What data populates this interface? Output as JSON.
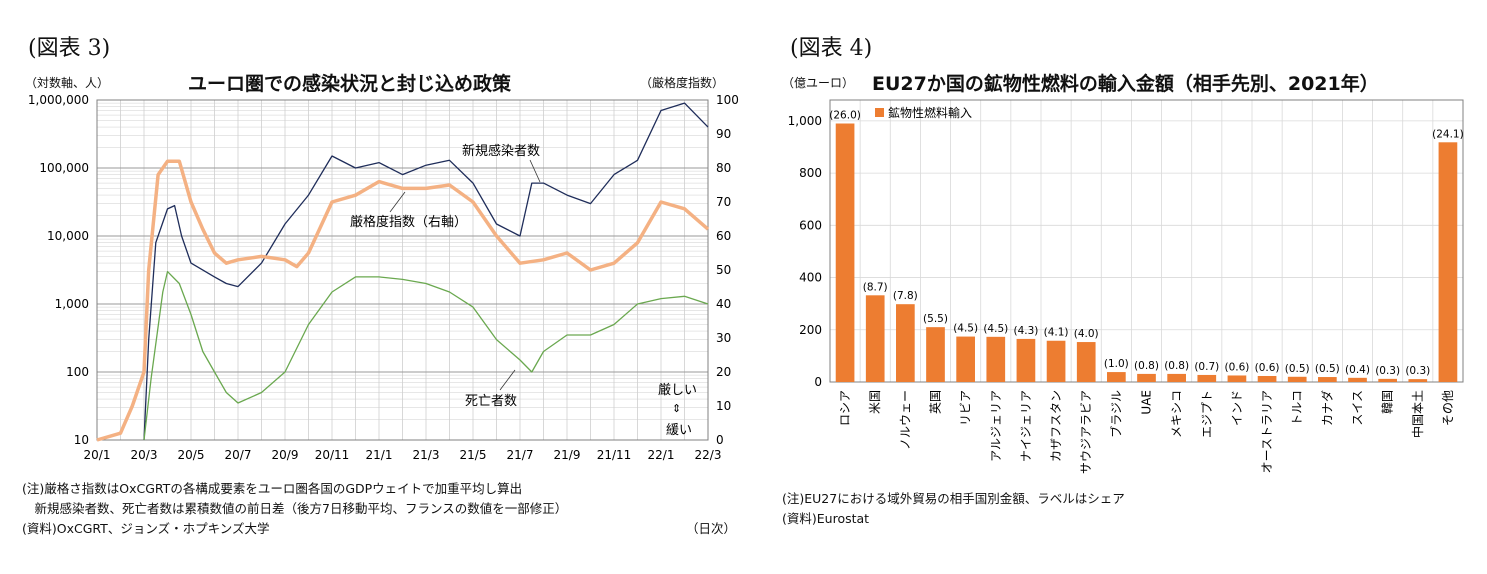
{
  "left": {
    "fig_label": "(図表 3)",
    "title": "ユーロ圏での感染状況と封じ込め政策",
    "left_unit": "（対数軸、人）",
    "right_unit": "（厳格度指数）",
    "notes": [
      "(注)厳格さ指数はOxCGRTの各構成要素をユーロ圏各国のGDPウェイトで加重平均し算出",
      "　新規感染者数、死亡者数は累積数値の前日差（後方7日移動平均、フランスの数値を一部修正）",
      "(資料)OxCGRT、ジョンズ・ホプキンズ大学"
    ],
    "x_unit": "（日次）"
  },
  "right": {
    "fig_label": "(図表 4)",
    "title": "EU27か国の鉱物性燃料の輸入金額（相手先別、2021年）",
    "unit": "（億ユーロ）",
    "notes": [
      "(注)EU27における域外貿易の相手国別金額、ラベルはシェア",
      "(資料)Eurostat"
    ]
  },
  "chart_data": [
    {
      "type": "line",
      "title": "ユーロ圏での感染状況と封じ込め政策",
      "x_ticks": [
        "20/1",
        "20/3",
        "20/5",
        "20/7",
        "20/9",
        "20/11",
        "21/1",
        "21/3",
        "21/5",
        "21/7",
        "21/9",
        "21/11",
        "22/1",
        "22/3"
      ],
      "y_left": {
        "scale": "log",
        "ticks": [
          "10",
          "100",
          "1,000",
          "10,000",
          "100,000",
          "1,000,000"
        ],
        "range": [
          10,
          1000000
        ]
      },
      "y_right": {
        "ticks": [
          "0",
          "10",
          "20",
          "30",
          "40",
          "50",
          "60",
          "70",
          "80",
          "90",
          "100"
        ],
        "range": [
          0,
          100
        ]
      },
      "grid": true,
      "series": [
        {
          "name": "新規感染者数",
          "axis": "left",
          "color": "#1f2d5a",
          "points": [
            [
              "20/3",
              10
            ],
            [
              "20/3.2",
              300
            ],
            [
              "20/3.5",
              8000
            ],
            [
              "20/4",
              25000
            ],
            [
              "20/4.3",
              28000
            ],
            [
              "20/4.6",
              10000
            ],
            [
              "20/5",
              4000
            ],
            [
              "20/6",
              2500
            ],
            [
              "20/6.5",
              2000
            ],
            [
              "20/7",
              1800
            ],
            [
              "20/8",
              4000
            ],
            [
              "20/9",
              15000
            ],
            [
              "20/10",
              40000
            ],
            [
              "20/11",
              150000
            ],
            [
              "20/12",
              100000
            ],
            [
              "21/1",
              120000
            ],
            [
              "21/2",
              80000
            ],
            [
              "21/3",
              110000
            ],
            [
              "21/4",
              130000
            ],
            [
              "21/5",
              60000
            ],
            [
              "21/6",
              15000
            ],
            [
              "21/7",
              10000
            ],
            [
              "21/7.5",
              60000
            ],
            [
              "21/8",
              60000
            ],
            [
              "21/9",
              40000
            ],
            [
              "21/10",
              30000
            ],
            [
              "21/11",
              80000
            ],
            [
              "21/12",
              130000
            ],
            [
              "22/1",
              700000
            ],
            [
              "22/2",
              900000
            ],
            [
              "22/3",
              400000
            ]
          ]
        },
        {
          "name": "死亡者数",
          "axis": "left",
          "color": "#6aa84f",
          "points": [
            [
              "20/3",
              10
            ],
            [
              "20/3.3",
              80
            ],
            [
              "20/3.8",
              1500
            ],
            [
              "20/4",
              3000
            ],
            [
              "20/4.5",
              2000
            ],
            [
              "20/5",
              700
            ],
            [
              "20/5.5",
              200
            ],
            [
              "20/6",
              100
            ],
            [
              "20/6.5",
              50
            ],
            [
              "20/7",
              35
            ],
            [
              "20/8",
              50
            ],
            [
              "20/9",
              100
            ],
            [
              "20/10",
              500
            ],
            [
              "20/11",
              1500
            ],
            [
              "20/12",
              2500
            ],
            [
              "21/1",
              2500
            ],
            [
              "21/2",
              2300
            ],
            [
              "21/3",
              2000
            ],
            [
              "21/4",
              1500
            ],
            [
              "21/5",
              900
            ],
            [
              "21/6",
              300
            ],
            [
              "21/7",
              150
            ],
            [
              "21/7.5",
              100
            ],
            [
              "21/8",
              200
            ],
            [
              "21/9",
              350
            ],
            [
              "21/10",
              350
            ],
            [
              "21/11",
              500
            ],
            [
              "21/12",
              1000
            ],
            [
              "22/1",
              1200
            ],
            [
              "22/2",
              1300
            ],
            [
              "22/3",
              1000
            ]
          ]
        },
        {
          "name": "厳格度指数（右軸）",
          "axis": "right",
          "color": "#f4b183",
          "points": [
            [
              "20/1",
              0
            ],
            [
              "20/2",
              2
            ],
            [
              "20/2.5",
              10
            ],
            [
              "20/3",
              20
            ],
            [
              "20/3.2",
              50
            ],
            [
              "20/3.6",
              78
            ],
            [
              "20/4",
              82
            ],
            [
              "20/4.5",
              82
            ],
            [
              "20/5",
              70
            ],
            [
              "20/5.5",
              62
            ],
            [
              "20/6",
              55
            ],
            [
              "20/6.5",
              52
            ],
            [
              "20/7",
              53
            ],
            [
              "20/8",
              54
            ],
            [
              "20/9",
              53
            ],
            [
              "20/9.5",
              51
            ],
            [
              "20/10",
              55
            ],
            [
              "20/11",
              70
            ],
            [
              "20/12",
              72
            ],
            [
              "21/1",
              76
            ],
            [
              "21/2",
              74
            ],
            [
              "21/3",
              74
            ],
            [
              "21/4",
              75
            ],
            [
              "21/5",
              70
            ],
            [
              "21/6",
              60
            ],
            [
              "21/7",
              52
            ],
            [
              "21/8",
              53
            ],
            [
              "21/9",
              55
            ],
            [
              "21/10",
              50
            ],
            [
              "21/11",
              52
            ],
            [
              "21/12",
              58
            ],
            [
              "22/1",
              70
            ],
            [
              "22/2",
              68
            ],
            [
              "22/3",
              62
            ]
          ]
        }
      ],
      "annotations": [
        "新規感染者数",
        "厳格度指数（右軸）",
        "死亡者数",
        "厳しい",
        "緩い"
      ]
    },
    {
      "type": "bar",
      "title": "EU27か国の鉱物性燃料の輸入金額（相手先別、2021年）",
      "legend": "鉱物性燃料輸入",
      "categories": [
        "ロシア",
        "米国",
        "ノルウェー",
        "英国",
        "リビア",
        "アルジェリア",
        "ナイジェリア",
        "カザフスタン",
        "サウジアラビア",
        "ブラジル",
        "UAE",
        "メキシコ",
        "エジプト",
        "インド",
        "オーストラリア",
        "トルコ",
        "カナダ",
        "スイス",
        "韓国",
        "中国本土",
        "その他"
      ],
      "values": [
        990,
        332,
        298,
        210,
        174,
        173,
        165,
        158,
        153,
        38,
        31,
        31,
        27,
        25,
        23,
        20,
        19,
        16,
        12,
        11,
        918
      ],
      "labels": [
        "(26.0)",
        "(8.7)",
        "(7.8)",
        "(5.5)",
        "(4.5)",
        "(4.5)",
        "(4.3)",
        "(4.1)",
        "(4.0)",
        "(1.0)",
        "(0.8)",
        "(0.8)",
        "(0.7)",
        "(0.6)",
        "(0.6)",
        "(0.5)",
        "(0.5)",
        "(0.4)",
        "(0.3)",
        "(0.3)",
        "(24.1)"
      ],
      "y_ticks": [
        "0",
        "200",
        "400",
        "600",
        "800",
        "1,000"
      ],
      "ylim": [
        0,
        1000
      ],
      "color": "#ed7d31"
    }
  ]
}
